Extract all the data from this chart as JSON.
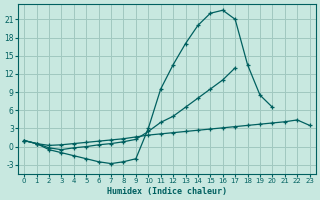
{
  "xlabel": "Humidex (Indice chaleur)",
  "bg_color": "#c8e8e0",
  "grid_color": "#a0c8c0",
  "line_color": "#006060",
  "xlim": [
    -0.5,
    23.5
  ],
  "ylim": [
    -4.5,
    23.5
  ],
  "yticks": [
    -3,
    0,
    3,
    6,
    9,
    12,
    15,
    18,
    21
  ],
  "xticks": [
    0,
    1,
    2,
    3,
    4,
    5,
    6,
    7,
    8,
    9,
    10,
    11,
    12,
    13,
    14,
    15,
    16,
    17,
    18,
    19,
    20,
    21,
    22,
    23
  ],
  "c1x": [
    0,
    1,
    2,
    3,
    4,
    5,
    6,
    7,
    8,
    9,
    10,
    11,
    12,
    13,
    14,
    15,
    16,
    17,
    18,
    19,
    20
  ],
  "c1y": [
    1.0,
    0.5,
    -0.5,
    -1.0,
    -1.5,
    -2.0,
    -2.5,
    -2.8,
    -2.5,
    -2.0,
    3.0,
    9.5,
    13.5,
    17.0,
    20.0,
    22.0,
    22.5,
    21.0,
    13.5,
    8.5,
    6.5
  ],
  "c2x": [
    0,
    1,
    2,
    3,
    4,
    5,
    6,
    7,
    8,
    9,
    10,
    11,
    12,
    13,
    14,
    15,
    16,
    17
  ],
  "c2y": [
    1.0,
    0.5,
    -0.2,
    -0.5,
    -0.2,
    0.0,
    0.3,
    0.5,
    0.8,
    1.2,
    2.5,
    4.0,
    5.0,
    6.5,
    8.0,
    9.5,
    11.0,
    13.0
  ],
  "c3x": [
    0,
    1,
    2,
    3,
    4,
    5,
    6,
    7,
    8,
    9,
    10,
    11,
    12,
    13,
    14,
    15,
    16,
    17,
    18,
    19,
    20,
    21,
    22,
    23
  ],
  "c3y": [
    1.0,
    0.5,
    0.2,
    0.3,
    0.5,
    0.7,
    0.9,
    1.1,
    1.3,
    1.6,
    1.9,
    2.1,
    2.3,
    2.5,
    2.7,
    2.9,
    3.1,
    3.3,
    3.5,
    3.7,
    3.9,
    4.1,
    4.4,
    3.5
  ]
}
